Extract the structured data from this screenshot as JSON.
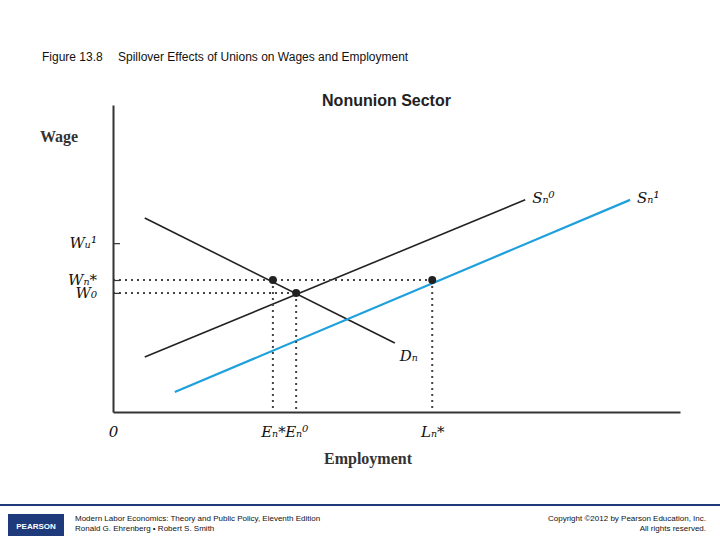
{
  "slide": {
    "figure": "Figure 13.8",
    "caption": "Spillover Effects of Unions on Wages and Employment",
    "footer_left": [
      "Modern Labor Economics: Theory and Public Policy, Eleventh Edition",
      "Ronald G. Ehrenberg • Robert S. Smith"
    ],
    "footer_right": [
      "Copyright ©2012 by Pearson Education, Inc.",
      "All rights reserved."
    ],
    "logo": "PEARSON"
  },
  "chart_data": {
    "type": "line",
    "title": "Nonunion Sector",
    "x_label": "Employment",
    "y_label": "Wage",
    "xlim": [
      0,
      100
    ],
    "ylim": [
      0,
      100
    ],
    "xticks": [
      0,
      {
        "value": 28.2,
        "label": "Eₙ*"
      },
      {
        "value": 32.3,
        "label": "Eₙ⁰"
      },
      {
        "value": 56.3,
        "label": "Lₙ*"
      }
    ],
    "yticks": [
      {
        "value": 38.8,
        "label": "W₀"
      },
      {
        "value": 43,
        "label": "Wₙ*"
      },
      {
        "value": 55,
        "label": "Wᵤ¹"
      }
    ],
    "series": [
      {
        "name": "Dₙ",
        "color": "#222222",
        "x": [
          5.6,
          49.7
        ],
        "values": [
          63.2,
          22.5
        ]
      },
      {
        "name": "Sₙ⁰",
        "color": "#222222",
        "x": [
          5.6,
          72.7
        ],
        "values": [
          17.9,
          69.1
        ]
      },
      {
        "name": "Sₙ¹",
        "color": "#1ea0dc",
        "x": [
          10.9,
          91.2
        ],
        "values": [
          6.5,
          69.1
        ]
      },
      {
        "type": "scatter",
        "marker": "circle",
        "line_style": "dotted",
        "color": "#222222",
        "x": [
          28.2,
          32.3,
          56.3
        ],
        "values": [
          43,
          38.8,
          43
        ]
      }
    ]
  }
}
